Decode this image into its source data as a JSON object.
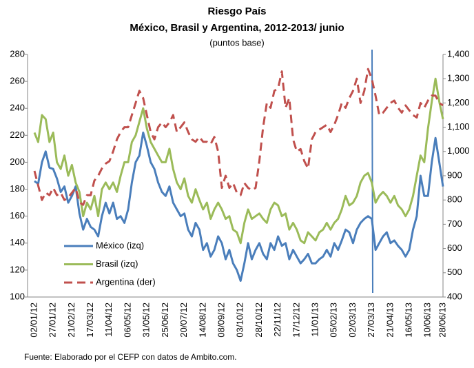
{
  "chart_data": {
    "type": "line",
    "title": "Riesgo País",
    "subtitle": "México, Brasil y Argentina, 2012-2013/ junio",
    "unit_label": "(puntos base)",
    "source": "Fuente: Elaborado por el CEFP con datos de Ambito.com.",
    "categories": [
      "02/01/12",
      null,
      null,
      null,
      null,
      "27/01/12",
      null,
      null,
      null,
      null,
      "21/02/12",
      null,
      null,
      null,
      null,
      "17/03/12",
      null,
      null,
      null,
      null,
      "11/04/12",
      null,
      null,
      null,
      null,
      "06/05/12",
      null,
      null,
      null,
      null,
      "31/05/12",
      null,
      null,
      null,
      null,
      "25/06/12",
      null,
      null,
      null,
      null,
      "20/07/12",
      null,
      null,
      null,
      null,
      "14/08/12",
      null,
      null,
      null,
      null,
      "08/09/12",
      null,
      null,
      null,
      null,
      "03/10/12",
      null,
      null,
      null,
      null,
      "28/10/12",
      null,
      null,
      null,
      null,
      "22/11/12",
      null,
      null,
      null,
      null,
      "17/12/12",
      null,
      null,
      null,
      null,
      "11/01/13",
      null,
      null,
      null,
      null,
      "05/02/13",
      null,
      null,
      null,
      null,
      "02/03/13",
      null,
      null,
      null,
      null,
      "27/03/13",
      null,
      null,
      null,
      null,
      "21/04/13",
      null,
      null,
      null,
      null,
      "16/05/13",
      null,
      null,
      null,
      null,
      "10/06/13",
      null,
      null,
      null,
      "28/06/13"
    ],
    "series": [
      {
        "name": "México (izq)",
        "color": "#4a7ebb",
        "values": [
          186,
          184,
          200,
          208,
          196,
          195,
          188,
          178,
          182,
          170,
          175,
          182,
          162,
          150,
          158,
          152,
          150,
          145,
          160,
          170,
          162,
          170,
          158,
          160,
          155,
          165,
          185,
          200,
          205,
          222,
          212,
          200,
          195,
          185,
          178,
          175,
          182,
          170,
          165,
          160,
          162,
          150,
          145,
          155,
          150,
          135,
          140,
          130,
          135,
          145,
          140,
          128,
          135,
          125,
          120,
          112,
          125,
          140,
          128,
          135,
          140,
          132,
          128,
          140,
          135,
          145,
          138,
          140,
          128,
          135,
          130,
          125,
          128,
          132,
          125,
          125,
          128,
          130,
          135,
          130,
          140,
          135,
          142,
          150,
          148,
          140,
          150,
          155,
          158,
          160,
          158,
          135,
          140,
          145,
          148,
          140,
          142,
          138,
          135,
          130,
          135,
          150,
          160,
          190,
          175,
          175,
          200,
          218,
          200,
          182
        ]
      },
      {
        "name": "Brasil (izq)",
        "color": "#9bbb59",
        "values": [
          222,
          215,
          235,
          232,
          215,
          222,
          200,
          195,
          205,
          190,
          198,
          185,
          178,
          160,
          170,
          165,
          175,
          160,
          180,
          185,
          180,
          185,
          178,
          190,
          200,
          200,
          215,
          220,
          230,
          240,
          225,
          215,
          210,
          205,
          200,
          200,
          210,
          195,
          185,
          180,
          188,
          175,
          170,
          180,
          172,
          165,
          170,
          158,
          165,
          170,
          165,
          158,
          160,
          150,
          148,
          140,
          155,
          165,
          158,
          160,
          162,
          158,
          155,
          165,
          170,
          168,
          160,
          162,
          150,
          155,
          150,
          142,
          140,
          148,
          145,
          142,
          148,
          150,
          155,
          150,
          155,
          158,
          165,
          175,
          168,
          170,
          175,
          185,
          190,
          192,
          185,
          170,
          175,
          178,
          175,
          170,
          175,
          168,
          165,
          160,
          165,
          175,
          190,
          205,
          200,
          225,
          245,
          262,
          245,
          232
        ]
      },
      {
        "name": "Argentina (der)",
        "color": "#c0504d",
        "axis": "y2",
        "values": [
          920,
          860,
          800,
          830,
          820,
          850,
          820,
          830,
          800,
          810,
          830,
          850,
          790,
          780,
          820,
          820,
          880,
          900,
          930,
          950,
          960,
          1000,
          1050,
          1080,
          1100,
          1100,
          1150,
          1200,
          1250,
          1220,
          1150,
          1080,
          1050,
          1100,
          1120,
          1100,
          1120,
          1150,
          1080,
          1100,
          1120,
          1080,
          1050,
          1040,
          1060,
          1040,
          1040,
          1030,
          1060,
          1000,
          850,
          900,
          850,
          870,
          830,
          820,
          870,
          850,
          840,
          850,
          960,
          1100,
          1200,
          1180,
          1250,
          1260,
          1330,
          1180,
          1220,
          1050,
          1000,
          1010,
          960,
          930,
          1050,
          1080,
          1090,
          1100,
          1110,
          1080,
          1110,
          1150,
          1200,
          1180,
          1220,
          1250,
          1300,
          1200,
          1250,
          1340,
          1300,
          1230,
          1150,
          1160,
          1180,
          1200,
          1210,
          1180,
          1160,
          1190,
          1170,
          1150,
          1140,
          1200,
          1180,
          1210,
          1230,
          1230,
          1200,
          1190
        ]
      }
    ],
    "ylim": [
      100,
      280
    ],
    "yticks": [
      100,
      120,
      140,
      160,
      180,
      200,
      220,
      240,
      260,
      280
    ],
    "y2lim": [
      400,
      1400
    ],
    "y2ticks": [
      400,
      500,
      600,
      700,
      800,
      900,
      {
        "value": 1000,
        "label": "1,000"
      },
      {
        "value": 1100,
        "label": "1,100"
      },
      {
        "value": 1200,
        "label": "1,200"
      },
      {
        "value": 1300,
        "label": "1,300"
      },
      {
        "value": 1400,
        "label": "1,400"
      }
    ],
    "legend": "lower-left",
    "grid": false
  }
}
